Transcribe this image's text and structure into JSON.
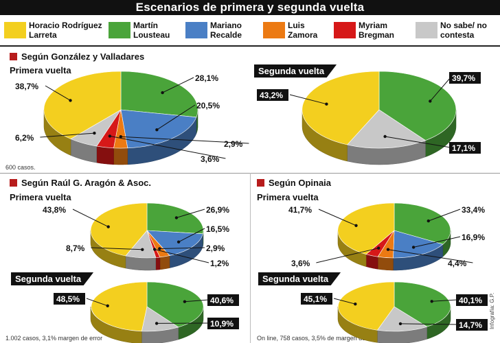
{
  "title": "Escenarios de primera y segunda vuelta",
  "legend": [
    {
      "label": "Horacio Rodríguez Larreta",
      "color": "#f3cf1f"
    },
    {
      "label": "Martín Lousteau",
      "color": "#4aa43a"
    },
    {
      "label": "Mariano Recalde",
      "color": "#4a7fc5"
    },
    {
      "label": "Luis Zamora",
      "color": "#ec7a13"
    },
    {
      "label": "Myriam Bregman",
      "color": "#d61818"
    },
    {
      "label": "No sabe/ no contesta",
      "color": "#c8c8c8"
    }
  ],
  "sections": [
    {
      "title": "Según González y Valladares",
      "subtitle": "Primera vuelta",
      "second_tag": "Segunda vuelta",
      "note": "600 casos."
    },
    {
      "title": "Según Raúl G. Aragón & Asoc.",
      "subtitle": "Primera vuelta",
      "second_tag": "Segunda vuelta",
      "note": "1.002 casos, 3,1% margen de error"
    },
    {
      "title": "Según Opinaia",
      "subtitle": "Primera vuelta",
      "second_tag": "Segunda vuelta",
      "note": "On line, 758 casos, 3,5% de margen de error."
    }
  ],
  "credit": "Infografía: G.P.",
  "chart_data": [
    {
      "type": "pie",
      "title": "Según González y Valladares - Primera vuelta",
      "series": [
        {
          "values": [
            38.7,
            28.1,
            20.5,
            2.9,
            3.6,
            6.2
          ]
        }
      ],
      "categories": [
        "Horacio Rodríguez Larreta",
        "Martín Lousteau",
        "Mariano Recalde",
        "Luis Zamora",
        "Myriam Bregman",
        "No sabe/ no contesta"
      ],
      "labels": [
        "38,7%",
        "28,1%",
        "20,5%",
        "2,9%",
        "3,6%",
        "6,2%"
      ]
    },
    {
      "type": "pie",
      "title": "Según González y Valladares - Segunda vuelta",
      "series": [
        {
          "values": [
            43.2,
            39.7,
            17.1
          ]
        }
      ],
      "categories": [
        "Horacio Rodríguez Larreta",
        "Martín Lousteau",
        "No sabe/ no contesta"
      ],
      "labels": [
        "43,2%",
        "39,7%",
        "17,1%"
      ]
    },
    {
      "type": "pie",
      "title": "Según Raúl G. Aragón & Asoc. - Primera vuelta",
      "series": [
        {
          "values": [
            43.8,
            26.9,
            16.5,
            2.9,
            1.2,
            8.7
          ]
        }
      ],
      "categories": [
        "Horacio Rodríguez Larreta",
        "Martín Lousteau",
        "Mariano Recalde",
        "Luis Zamora",
        "Myriam Bregman",
        "No sabe/ no contesta"
      ],
      "labels": [
        "43,8%",
        "26,9%",
        "16,5%",
        "2,9%",
        "1,2%",
        "8,7%"
      ]
    },
    {
      "type": "pie",
      "title": "Según Raúl G. Aragón & Asoc. - Segunda vuelta",
      "series": [
        {
          "values": [
            48.5,
            40.6,
            10.9
          ]
        }
      ],
      "categories": [
        "Horacio Rodríguez Larreta",
        "Martín Lousteau",
        "No sabe/ no contesta"
      ],
      "labels": [
        "48,5%",
        "40,6%",
        "10,9%"
      ]
    },
    {
      "type": "pie",
      "title": "Según Opinaia - Primera vuelta",
      "series": [
        {
          "values": [
            41.7,
            33.4,
            16.9,
            4.4,
            3.6
          ]
        }
      ],
      "categories": [
        "Horacio Rodríguez Larreta",
        "Martín Lousteau",
        "Mariano Recalde",
        "Luis Zamora",
        "Myriam Bregman"
      ],
      "labels": [
        "41,7%",
        "33,4%",
        "16,9%",
        "4,4%",
        "3,6%"
      ]
    },
    {
      "type": "pie",
      "title": "Según Opinaia - Segunda vuelta",
      "series": [
        {
          "values": [
            45.1,
            40.1,
            14.7
          ]
        }
      ],
      "categories": [
        "Horacio Rodríguez Larreta",
        "Martín Lousteau",
        "No sabe/ no contesta"
      ],
      "labels": [
        "45,1%",
        "40,1%",
        "14,7%"
      ]
    }
  ]
}
